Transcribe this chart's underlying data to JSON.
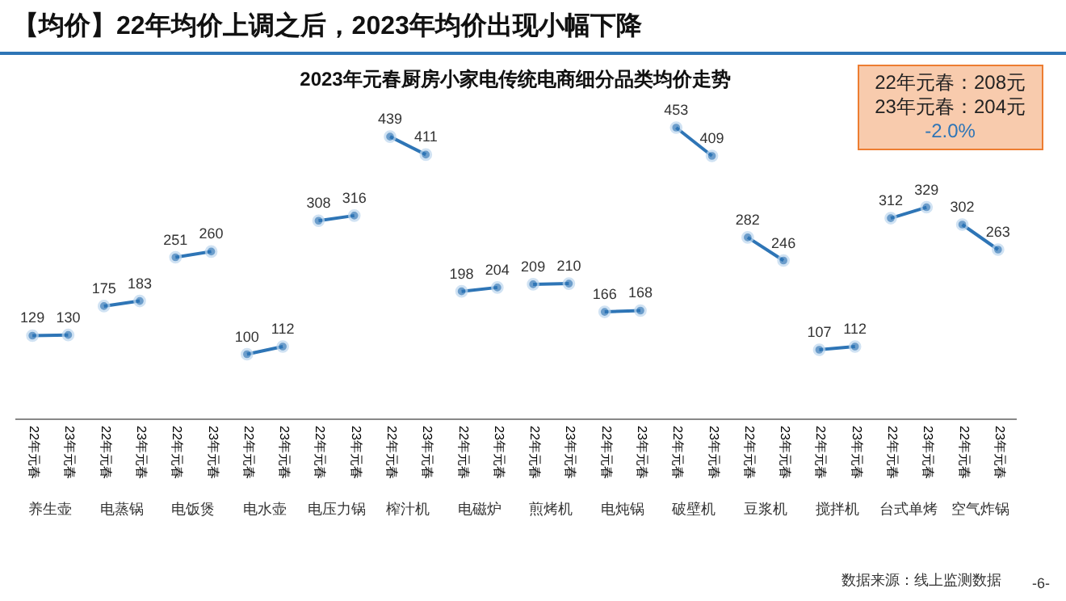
{
  "chart_data": {
    "type": "line",
    "title": "【均价】22年均价上调之后，2023年均价出现小幅下降",
    "subtitle": "2023年元春厨房小家电传统电商细分品类均价走势",
    "categories": [
      "22年元春",
      "23年元春",
      "22年元春",
      "23年元春",
      "22年元春",
      "23年元春",
      "22年元春",
      "23年元春",
      "22年元春",
      "23年元春",
      "22年元春",
      "23年元春",
      "22年元春",
      "23年元春",
      "22年元春",
      "23年元春",
      "22年元春",
      "23年元春",
      "22年元春",
      "23年元春",
      "22年元春",
      "23年元春",
      "22年元春",
      "23年元春",
      "22年元春",
      "23年元春",
      "22年元春",
      "23年元春"
    ],
    "series": [
      {
        "color": "#2e75b6",
        "values": [
          129,
          130,
          null,
          null,
          null,
          null,
          null,
          null,
          null,
          null,
          null,
          null,
          null,
          null,
          null,
          null,
          null,
          null,
          null,
          null,
          null,
          null,
          null,
          null,
          null,
          null,
          null,
          null
        ]
      },
      {
        "color": "#2e75b6",
        "values": [
          null,
          null,
          175,
          183,
          null,
          null,
          null,
          null,
          null,
          null,
          null,
          null,
          null,
          null,
          null,
          null,
          null,
          null,
          null,
          null,
          null,
          null,
          null,
          null,
          null,
          null,
          null,
          null
        ]
      },
      {
        "color": "#2e75b6",
        "values": [
          null,
          null,
          null,
          null,
          251,
          260,
          null,
          null,
          null,
          null,
          null,
          null,
          null,
          null,
          null,
          null,
          null,
          null,
          null,
          null,
          null,
          null,
          null,
          null,
          null,
          null,
          null,
          null
        ]
      },
      {
        "color": "#2e75b6",
        "values": [
          null,
          null,
          null,
          null,
          null,
          null,
          100,
          112,
          null,
          null,
          null,
          null,
          null,
          null,
          null,
          null,
          null,
          null,
          null,
          null,
          null,
          null,
          null,
          null,
          null,
          null,
          null,
          null
        ]
      },
      {
        "color": "#2e75b6",
        "values": [
          null,
          null,
          null,
          null,
          null,
          null,
          null,
          null,
          308,
          316,
          null,
          null,
          null,
          null,
          null,
          null,
          null,
          null,
          null,
          null,
          null,
          null,
          null,
          null,
          null,
          null,
          null,
          null
        ]
      },
      {
        "color": "#2e75b6",
        "values": [
          null,
          null,
          null,
          null,
          null,
          null,
          null,
          null,
          null,
          null,
          439,
          411,
          null,
          null,
          null,
          null,
          null,
          null,
          null,
          null,
          null,
          null,
          null,
          null,
          null,
          null,
          null,
          null
        ]
      },
      {
        "color": "#2e75b6",
        "values": [
          null,
          null,
          null,
          null,
          null,
          null,
          null,
          null,
          null,
          null,
          null,
          null,
          198,
          204,
          null,
          null,
          null,
          null,
          null,
          null,
          null,
          null,
          null,
          null,
          null,
          null,
          null,
          null
        ]
      },
      {
        "color": "#2e75b6",
        "values": [
          null,
          null,
          null,
          null,
          null,
          null,
          null,
          null,
          null,
          null,
          null,
          null,
          null,
          null,
          209,
          210,
          null,
          null,
          null,
          null,
          null,
          null,
          null,
          null,
          null,
          null,
          null,
          null
        ]
      },
      {
        "color": "#2e75b6",
        "values": [
          null,
          null,
          null,
          null,
          null,
          null,
          null,
          null,
          null,
          null,
          null,
          null,
          null,
          null,
          null,
          null,
          166,
          168,
          null,
          null,
          null,
          null,
          null,
          null,
          null,
          null,
          null,
          null
        ]
      },
      {
        "color": "#2e75b6",
        "values": [
          null,
          null,
          null,
          null,
          null,
          null,
          null,
          null,
          null,
          null,
          null,
          null,
          null,
          null,
          null,
          null,
          null,
          null,
          453,
          409,
          null,
          null,
          null,
          null,
          null,
          null,
          null,
          null
        ]
      },
      {
        "color": "#2e75b6",
        "values": [
          null,
          null,
          null,
          null,
          null,
          null,
          null,
          null,
          null,
          null,
          null,
          null,
          null,
          null,
          null,
          null,
          null,
          null,
          null,
          null,
          282,
          246,
          null,
          null,
          null,
          null,
          null,
          null
        ]
      },
      {
        "color": "#2e75b6",
        "values": [
          null,
          null,
          null,
          null,
          null,
          null,
          null,
          null,
          null,
          null,
          null,
          null,
          null,
          null,
          null,
          null,
          null,
          null,
          null,
          null,
          null,
          null,
          107,
          112,
          null,
          null,
          null,
          null
        ]
      },
      {
        "color": "#2e75b6",
        "values": [
          null,
          null,
          null,
          null,
          null,
          null,
          null,
          null,
          null,
          null,
          null,
          null,
          null,
          null,
          null,
          null,
          null,
          null,
          null,
          null,
          null,
          null,
          null,
          null,
          312,
          329,
          null,
          null
        ]
      },
      {
        "color": "#2e75b6",
        "values": [
          null,
          null,
          null,
          null,
          null,
          null,
          null,
          null,
          null,
          null,
          null,
          null,
          null,
          null,
          null,
          null,
          null,
          null,
          null,
          null,
          null,
          null,
          null,
          null,
          null,
          null,
          302,
          263
        ]
      }
    ],
    "data_labels": true,
    "marker": "circle",
    "annotations": [
      "22年元春：208元",
      "23年元春：204元",
      "-2.0%",
      "养生壶",
      "电蒸锅",
      "电饭煲",
      "电水壶",
      "电压力锅",
      "榨汁机",
      "电磁炉",
      "煎烤机",
      "电炖锅",
      "破壁机",
      "豆浆机",
      "搅拌机",
      "台式单烤",
      "空气炸锅",
      "数据来源：线上监测数据",
      "-6-"
    ]
  }
}
